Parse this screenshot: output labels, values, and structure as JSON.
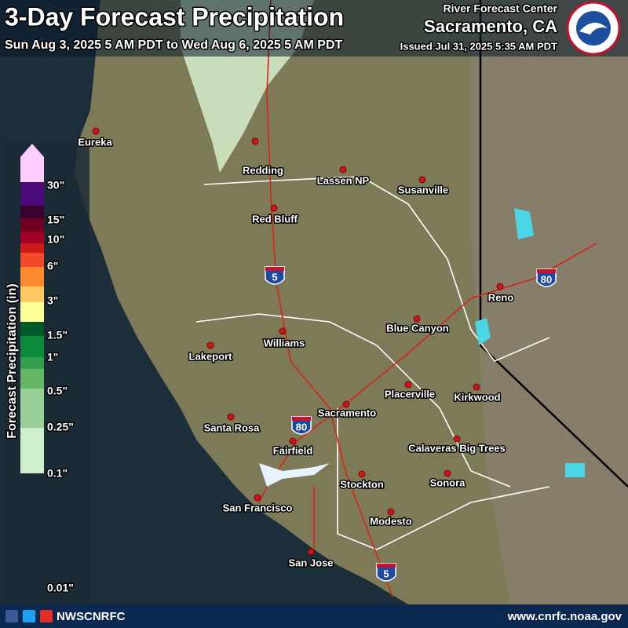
{
  "header": {
    "title": "3-Day Forecast Precipitation",
    "period": "Sun Aug 3, 2025 5 AM PDT to Wed Aug 6, 2025 5 AM PDT",
    "agency": "River Forecast Center",
    "location": "Sacramento, CA",
    "issued": "Issued Jul 31, 2025 5:35 AM PDT"
  },
  "legend": {
    "title": "Forecast Precipitation (in)",
    "labels": [
      "30\"",
      "15\"",
      "10\"",
      "6\"",
      "3\"",
      "1.5\"",
      "1\"",
      "0.5\"",
      "0.25\"",
      "0.1\"",
      "0.01\""
    ],
    "colors": [
      "#ffccff",
      "#4b0a7a",
      "#3a0030",
      "#6e0020",
      "#a00025",
      "#d01a1a",
      "#f04a2a",
      "#ff8a30",
      "#ffc860",
      "#ffff99",
      "#005a28",
      "#0a8a3a",
      "#33a050",
      "#66b866",
      "#99d099",
      "#cfeecb"
    ]
  },
  "cities": [
    "Eureka",
    "Redding",
    "Lassen NP",
    "Susanville",
    "Red Bluff",
    "Reno",
    "Blue Canyon",
    "Williams",
    "Lakeport",
    "Placerville",
    "Kirkwood",
    "Sacramento",
    "Santa Rosa",
    "Calaveras Big Trees",
    "Fairfield",
    "Sonora",
    "Stockton",
    "San Francisco",
    "Modesto",
    "San Jose"
  ],
  "highways": [
    "5",
    "80",
    "80",
    "5"
  ],
  "footer": {
    "social": "NWSCNRFC",
    "url": "www.cnrfc.noaa.gov"
  }
}
